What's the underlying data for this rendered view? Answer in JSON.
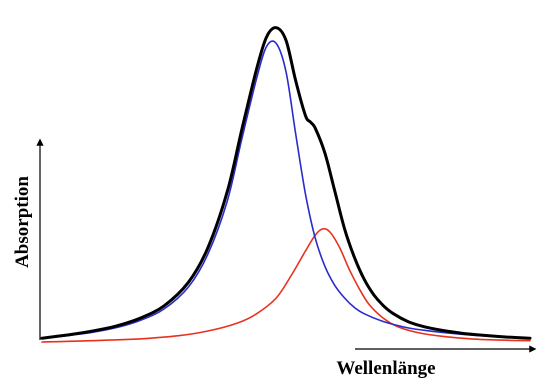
{
  "chart_data": {
    "type": "line",
    "title": "",
    "xlabel": "Wellenlänge",
    "ylabel": "Absorption",
    "xlim": [
      0,
      100
    ],
    "ylim": [
      0,
      1.05
    ],
    "grid": false,
    "legend": "none",
    "series": [
      {
        "color": "#000000",
        "x": [
          0,
          5,
          10,
          15,
          20,
          25,
          30,
          34,
          38,
          41,
          44,
          46,
          48,
          50,
          52,
          54,
          55,
          56,
          58,
          60,
          62,
          64,
          66,
          68,
          70,
          72,
          75,
          78,
          82,
          86,
          90,
          95,
          100
        ],
        "y": [
          0.012,
          0.022,
          0.034,
          0.05,
          0.075,
          0.115,
          0.19,
          0.3,
          0.48,
          0.68,
          0.87,
          0.97,
          1.0,
          0.96,
          0.83,
          0.72,
          0.7,
          0.68,
          0.6,
          0.48,
          0.36,
          0.27,
          0.2,
          0.15,
          0.115,
          0.09,
          0.065,
          0.05,
          0.037,
          0.028,
          0.022,
          0.016,
          0.012
        ]
      },
      {
        "color": "#2b2bcc",
        "x": [
          0,
          5,
          10,
          15,
          20,
          25,
          30,
          34,
          38,
          41,
          44,
          46,
          48,
          50,
          52,
          54,
          56,
          58,
          60,
          62,
          64,
          66,
          70,
          75,
          80,
          85,
          90,
          95,
          100
        ],
        "y": [
          0.012,
          0.02,
          0.03,
          0.045,
          0.068,
          0.105,
          0.175,
          0.28,
          0.45,
          0.65,
          0.84,
          0.94,
          0.95,
          0.86,
          0.66,
          0.47,
          0.33,
          0.24,
          0.18,
          0.14,
          0.11,
          0.09,
          0.065,
          0.045,
          0.034,
          0.026,
          0.02,
          0.016,
          0.012
        ]
      },
      {
        "color": "#e8321e",
        "x": [
          0,
          10,
          20,
          28,
          34,
          40,
          44,
          48,
          51,
          54,
          56,
          57.5,
          59,
          61,
          63,
          65,
          67,
          70,
          73,
          77,
          82,
          88,
          94,
          100
        ],
        "y": [
          0.0,
          0.004,
          0.01,
          0.02,
          0.035,
          0.06,
          0.09,
          0.14,
          0.21,
          0.29,
          0.34,
          0.36,
          0.35,
          0.3,
          0.23,
          0.17,
          0.12,
          0.075,
          0.048,
          0.03,
          0.018,
          0.01,
          0.006,
          0.004
        ]
      }
    ]
  }
}
